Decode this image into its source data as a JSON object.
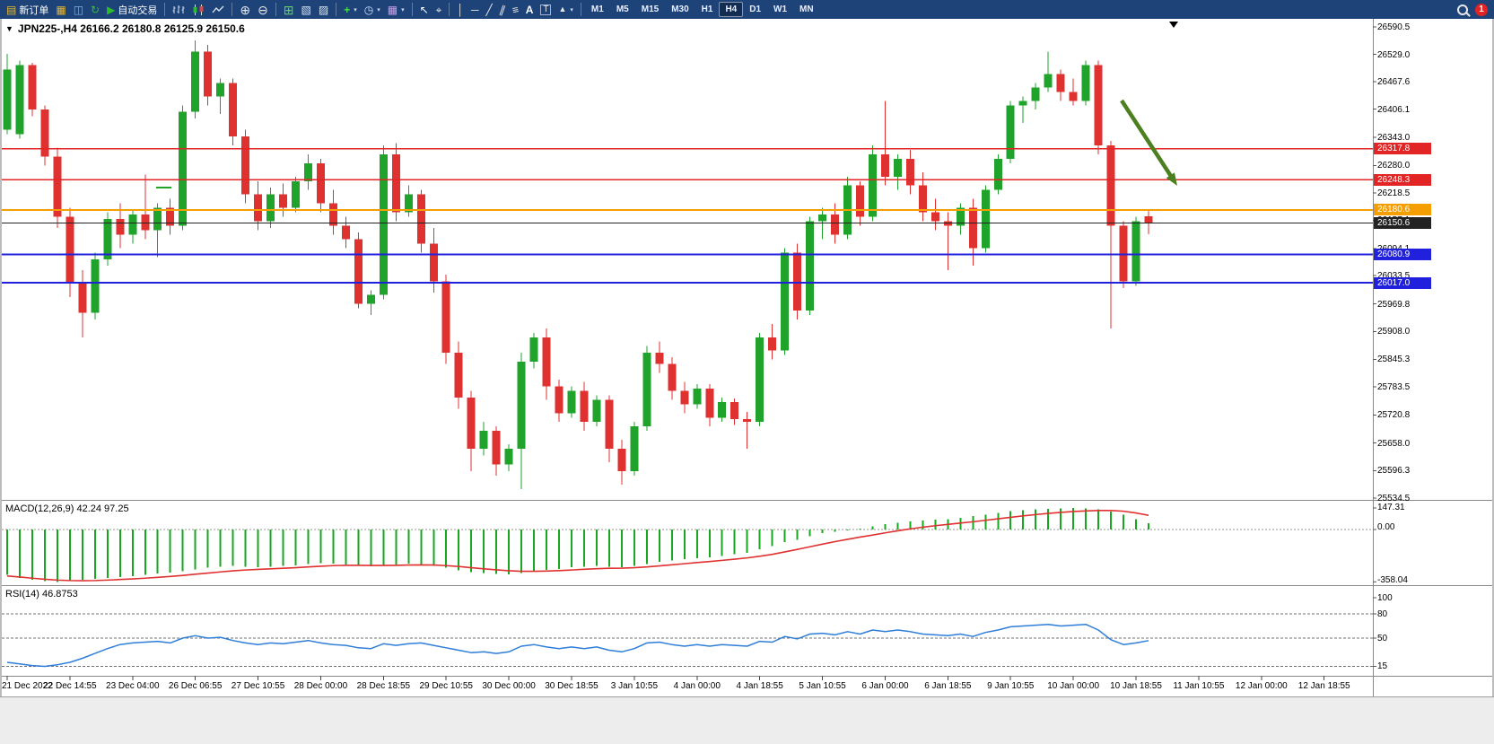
{
  "toolbar": {
    "new_order_label": "新订单",
    "autotrade_label": "自动交易",
    "timeframes": [
      "M1",
      "M5",
      "M15",
      "M30",
      "H1",
      "H4",
      "D1",
      "W1",
      "MN"
    ],
    "active_timeframe": "H4",
    "notification_count": "1",
    "icon_names": [
      "new-order-icon",
      "market-watch-icon",
      "navigator-icon",
      "terminal-icon",
      "autotrade-icon",
      "bar-chart-icon",
      "candle-chart-icon",
      "line-chart-icon",
      "zoom-in-icon",
      "zoom-out-icon",
      "tile-windows-icon",
      "new-chart-icon",
      "chart-shift-icon",
      "indicators-icon",
      "periods-icon",
      "templates-icon",
      "cursor-icon",
      "crosshair-icon",
      "vertical-line-icon",
      "horizontal-line-icon",
      "trendline-icon",
      "channel-icon",
      "fibonacci-icon",
      "text-icon",
      "label-icon",
      "arrows-icon",
      "search-icon"
    ]
  },
  "chart": {
    "title": "JPN225-,H4 26166.2 26180.8 26125.9 26150.6",
    "macd_label": "MACD(12,26,9) 42.24 97.25",
    "rsi_label": "RSI(14) 46.8753"
  },
  "chart_data": {
    "type": "candlestick",
    "symbol": "JPN225-",
    "timeframe": "H4",
    "ohlc_current": {
      "open": 26166.2,
      "high": 26180.8,
      "low": 26125.9,
      "close": 26150.6
    },
    "up_color": "#1fa32a",
    "down_color": "#e03131",
    "price_axis": {
      "min": 25534.5,
      "max": 26590.5,
      "labels": [
        "26590.5",
        "26529.0",
        "26467.6",
        "26406.1",
        "26343.0",
        "26280.0",
        "26218.5",
        "26157.1",
        "26094.1",
        "26033.5",
        "25969.8",
        "25908.0",
        "25845.3",
        "25783.5",
        "25720.8",
        "25658.0",
        "25596.3",
        "25534.5"
      ]
    },
    "candles": [
      [
        26360,
        26530,
        26350,
        26495
      ],
      [
        26350,
        26515,
        26340,
        26505
      ],
      [
        26505,
        26510,
        26390,
        26405
      ],
      [
        26405,
        26415,
        26280,
        26300
      ],
      [
        26300,
        26320,
        26140,
        26165
      ],
      [
        26165,
        26185,
        25985,
        26015
      ],
      [
        26015,
        26045,
        25895,
        25950
      ],
      [
        25950,
        26085,
        25935,
        26070
      ],
      [
        26070,
        26175,
        26055,
        26160
      ],
      [
        26160,
        26195,
        26095,
        26125
      ],
      [
        26125,
        26180,
        26105,
        26170
      ],
      [
        26170,
        26260,
        26115,
        26135
      ],
      [
        26135,
        26195,
        26075,
        26185
      ],
      [
        26185,
        26205,
        26125,
        26145
      ],
      [
        26145,
        26415,
        26135,
        26400
      ],
      [
        26400,
        26560,
        26385,
        26535
      ],
      [
        26535,
        26550,
        26415,
        26435
      ],
      [
        26435,
        26475,
        26395,
        26465
      ],
      [
        26465,
        26475,
        26325,
        26345
      ],
      [
        26345,
        26360,
        26195,
        26215
      ],
      [
        26215,
        26245,
        26135,
        26155
      ],
      [
        26155,
        26230,
        26140,
        26215
      ],
      [
        26215,
        26240,
        26165,
        26185
      ],
      [
        26185,
        26255,
        26175,
        26245
      ],
      [
        26245,
        26305,
        26225,
        26285
      ],
      [
        26285,
        26295,
        26175,
        26195
      ],
      [
        26195,
        26225,
        26125,
        26145
      ],
      [
        26145,
        26165,
        26095,
        26115
      ],
      [
        26115,
        26130,
        25960,
        25970
      ],
      [
        25970,
        26000,
        25945,
        25990
      ],
      [
        25990,
        26325,
        25980,
        26305
      ],
      [
        26305,
        26330,
        26155,
        26175
      ],
      [
        26175,
        26235,
        26165,
        26215
      ],
      [
        26215,
        26225,
        26085,
        26105
      ],
      [
        26105,
        26140,
        25995,
        26020
      ],
      [
        26020,
        26035,
        25835,
        25860
      ],
      [
        25860,
        25885,
        25735,
        25760
      ],
      [
        25760,
        25775,
        25595,
        25645
      ],
      [
        25645,
        25705,
        25630,
        25685
      ],
      [
        25685,
        25695,
        25585,
        25610
      ],
      [
        25610,
        25655,
        25595,
        25645
      ],
      [
        25645,
        25860,
        25555,
        25840
      ],
      [
        25840,
        25905,
        25825,
        25895
      ],
      [
        25895,
        25915,
        25755,
        25785
      ],
      [
        25785,
        25800,
        25705,
        25725
      ],
      [
        25725,
        25785,
        25715,
        25775
      ],
      [
        25775,
        25795,
        25685,
        25705
      ],
      [
        25705,
        25765,
        25695,
        25755
      ],
      [
        25755,
        25765,
        25615,
        25645
      ],
      [
        25645,
        25665,
        25565,
        25595
      ],
      [
        25595,
        25705,
        25585,
        25695
      ],
      [
        25695,
        25875,
        25685,
        25860
      ],
      [
        25860,
        25885,
        25815,
        25835
      ],
      [
        25835,
        25850,
        25755,
        25775
      ],
      [
        25775,
        25795,
        25725,
        25745
      ],
      [
        25745,
        25790,
        25735,
        25780
      ],
      [
        25780,
        25790,
        25695,
        25715
      ],
      [
        25715,
        25760,
        25705,
        25750
      ],
      [
        25750,
        25758,
        25698,
        25712
      ],
      [
        25712,
        25728,
        25645,
        25705
      ],
      [
        25705,
        25905,
        25695,
        25895
      ],
      [
        25895,
        25925,
        25845,
        25865
      ],
      [
        25865,
        26095,
        25855,
        26085
      ],
      [
        26085,
        26105,
        25935,
        25955
      ],
      [
        25955,
        26165,
        25945,
        26155
      ],
      [
        26155,
        26185,
        26115,
        26170
      ],
      [
        26170,
        26195,
        26105,
        26125
      ],
      [
        26125,
        26255,
        26115,
        26235
      ],
      [
        26235,
        26245,
        26145,
        26165
      ],
      [
        26165,
        26325,
        26155,
        26305
      ],
      [
        26305,
        26425,
        26235,
        26255
      ],
      [
        26255,
        26305,
        26225,
        26295
      ],
      [
        26295,
        26315,
        26215,
        26235
      ],
      [
        26235,
        26265,
        26155,
        26175
      ],
      [
        26175,
        26205,
        26135,
        26155
      ],
      [
        26155,
        26175,
        26045,
        26145
      ],
      [
        26145,
        26195,
        26125,
        26185
      ],
      [
        26185,
        26205,
        26055,
        26095
      ],
      [
        26095,
        26235,
        26085,
        26225
      ],
      [
        26225,
        26305,
        26215,
        26295
      ],
      [
        26295,
        26425,
        26285,
        26415
      ],
      [
        26415,
        26435,
        26375,
        26425
      ],
      [
        26425,
        26465,
        26405,
        26455
      ],
      [
        26455,
        26535,
        26445,
        26485
      ],
      [
        26485,
        26495,
        26425,
        26445
      ],
      [
        26445,
        26475,
        26415,
        26425
      ],
      [
        26425,
        26515,
        26415,
        26505
      ],
      [
        26505,
        26515,
        26305,
        26325
      ],
      [
        26325,
        26335,
        25915,
        26145
      ],
      [
        26145,
        26155,
        26005,
        26020
      ],
      [
        26020,
        26165,
        26010,
        26155
      ],
      [
        26166.2,
        26180.8,
        26125.9,
        26150.6
      ]
    ],
    "hlines": [
      {
        "price": 26317.8,
        "label": "26317.8",
        "color": "#e32424",
        "width": 1.5
      },
      {
        "price": 26248.3,
        "label": "26248.3",
        "color": "#e32424",
        "width": 1.5
      },
      {
        "price": 26180.6,
        "label": "26180.6",
        "color": "#f59e00",
        "width": 2
      },
      {
        "price": 26150.6,
        "label": "26150.6",
        "color": "#222222",
        "width": 1
      },
      {
        "price": 26080.9,
        "label": "26080.9",
        "color": "#2121dd",
        "width": 2
      },
      {
        "price": 26017.0,
        "label": "26017.0",
        "color": "#2121dd",
        "width": 2
      }
    ],
    "macd": {
      "scale_labels": [
        "147.31",
        "0.00",
        "-358.04"
      ],
      "range": [
        -358.04,
        147.31
      ],
      "histogram_color": "#17a81f",
      "signal_color": "#e03131",
      "histogram": [
        -310,
        -330,
        -345,
        -352,
        -358,
        -350,
        -344,
        -338,
        -330,
        -324,
        -318,
        -310,
        -302,
        -295,
        -286,
        -272,
        -262,
        -255,
        -250,
        -254,
        -258,
        -254,
        -249,
        -244,
        -236,
        -230,
        -234,
        -240,
        -248,
        -252,
        -242,
        -238,
        -234,
        -238,
        -248,
        -262,
        -278,
        -292,
        -299,
        -304,
        -307,
        -299,
        -286,
        -276,
        -269,
        -259,
        -254,
        -250,
        -255,
        -259,
        -250,
        -236,
        -222,
        -211,
        -204,
        -196,
        -189,
        -180,
        -170,
        -159,
        -136,
        -115,
        -86,
        -70,
        -46,
        -26,
        -15,
        -5,
        6,
        20,
        36,
        46,
        56,
        61,
        66,
        71,
        81,
        91,
        101,
        113,
        126,
        133,
        138,
        142,
        145,
        147,
        144,
        138,
        124,
        100,
        70,
        42
      ],
      "signal": [
        -318,
        -325,
        -333,
        -340,
        -346,
        -349,
        -350,
        -349,
        -346,
        -342,
        -338,
        -333,
        -327,
        -321,
        -314,
        -306,
        -298,
        -290,
        -283,
        -277,
        -273,
        -269,
        -265,
        -261,
        -256,
        -251,
        -247,
        -245,
        -245,
        -246,
        -246,
        -245,
        -243,
        -242,
        -243,
        -247,
        -253,
        -261,
        -269,
        -276,
        -282,
        -286,
        -286,
        -284,
        -281,
        -277,
        -272,
        -268,
        -265,
        -264,
        -261,
        -256,
        -249,
        -241,
        -234,
        -226,
        -219,
        -211,
        -203,
        -194,
        -183,
        -170,
        -153,
        -136,
        -118,
        -100,
        -83,
        -67,
        -52,
        -38,
        -23,
        -9,
        4,
        16,
        26,
        35,
        44,
        53,
        63,
        73,
        83,
        93,
        102,
        110,
        117,
        123,
        127,
        130,
        130,
        125,
        113,
        97
      ]
    },
    "rsi": {
      "scale_labels": [
        "100",
        "80",
        "50",
        "15"
      ],
      "levels": [
        80,
        50,
        15
      ],
      "color": "#2f7ed8",
      "values": [
        20,
        18,
        16,
        15,
        17,
        20,
        25,
        31,
        37,
        42,
        44,
        45,
        46,
        44,
        50,
        53,
        50,
        51,
        47,
        44,
        42,
        44,
        43,
        45,
        47,
        44,
        42,
        41,
        38,
        37,
        43,
        41,
        43,
        44,
        41,
        38,
        35,
        32,
        33,
        31,
        33,
        40,
        42,
        39,
        37,
        39,
        37,
        39,
        35,
        33,
        37,
        44,
        45,
        42,
        40,
        42,
        40,
        42,
        41,
        40,
        46,
        45,
        52,
        49,
        55,
        56,
        54,
        58,
        55,
        60,
        58,
        60,
        58,
        55,
        54,
        53,
        55,
        52,
        57,
        60,
        64,
        65,
        66,
        67,
        65,
        66,
        67,
        60,
        48,
        42,
        44,
        46.88
      ]
    },
    "time_labels": [
      "21 Dec 2022",
      "22 Dec 14:55",
      "23 Dec 04:00",
      "26 Dec 06:55",
      "27 Dec 10:55",
      "28 Dec 00:00",
      "28 Dec 18:55",
      "29 Dec 10:55",
      "30 Dec 00:00",
      "30 Dec 18:55",
      "3 Jan 10:55",
      "4 Jan 00:00",
      "4 Jan 18:55",
      "5 Jan 10:55",
      "6 Jan 00:00",
      "6 Jan 18:55",
      "9 Jan 10:55",
      "10 Jan 00:00",
      "10 Jan 18:55",
      "11 Jan 10:55",
      "12 Jan 00:00",
      "12 Jan 18:55"
    ],
    "annotations": {
      "arrow": {
        "from": [
          1250,
          112
        ],
        "to": [
          1312,
          207
        ],
        "color": "#4c7f1f"
      },
      "dash": {
        "from": [
          174,
          209
        ],
        "to": [
          191,
          209
        ],
        "color": "#22a226"
      }
    }
  }
}
